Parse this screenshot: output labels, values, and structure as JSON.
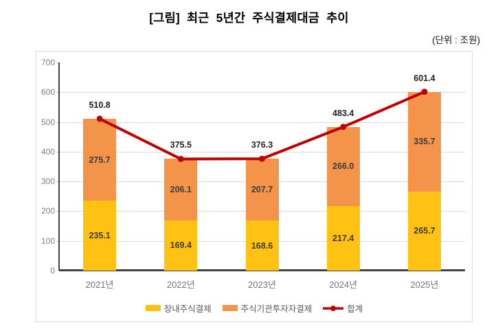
{
  "header": {
    "title": "[그림] 최근 5년간 주식결제대금 추이",
    "unit": "(단위 : 조원)"
  },
  "chart_data": {
    "type": "bar",
    "stacked": true,
    "title": "[그림] 최근 5년간 주식결제대금 추이",
    "unit": "조원",
    "categories": [
      "2021년",
      "2022년",
      "2023년",
      "2024년",
      "2025년"
    ],
    "series": [
      {
        "name": "장내주식결제",
        "color": "#FFC112",
        "values": [
          235.1,
          169.4,
          168.6,
          217.4,
          265.7
        ]
      },
      {
        "name": "주식기관투자자결제",
        "color": "#F4944A",
        "values": [
          275.7,
          206.1,
          207.7,
          266.0,
          335.7
        ]
      }
    ],
    "line_series": {
      "name": "합계",
      "color": "#C00000",
      "values": [
        510.8,
        375.5,
        376.3,
        483.4,
        601.4
      ]
    },
    "ylim": [
      0,
      700
    ],
    "ytick_step": 100,
    "grid": true,
    "legend_position": "bottom"
  },
  "colors": {
    "gridline": "#d9d9d9",
    "axis": "#404040",
    "tick_label": "#7f7f7f",
    "category_label": "#757575",
    "segment_label": "#3d3d3d",
    "total_label": "#212121",
    "legend_text": "#595959",
    "box_border": "#d9d9d9"
  }
}
